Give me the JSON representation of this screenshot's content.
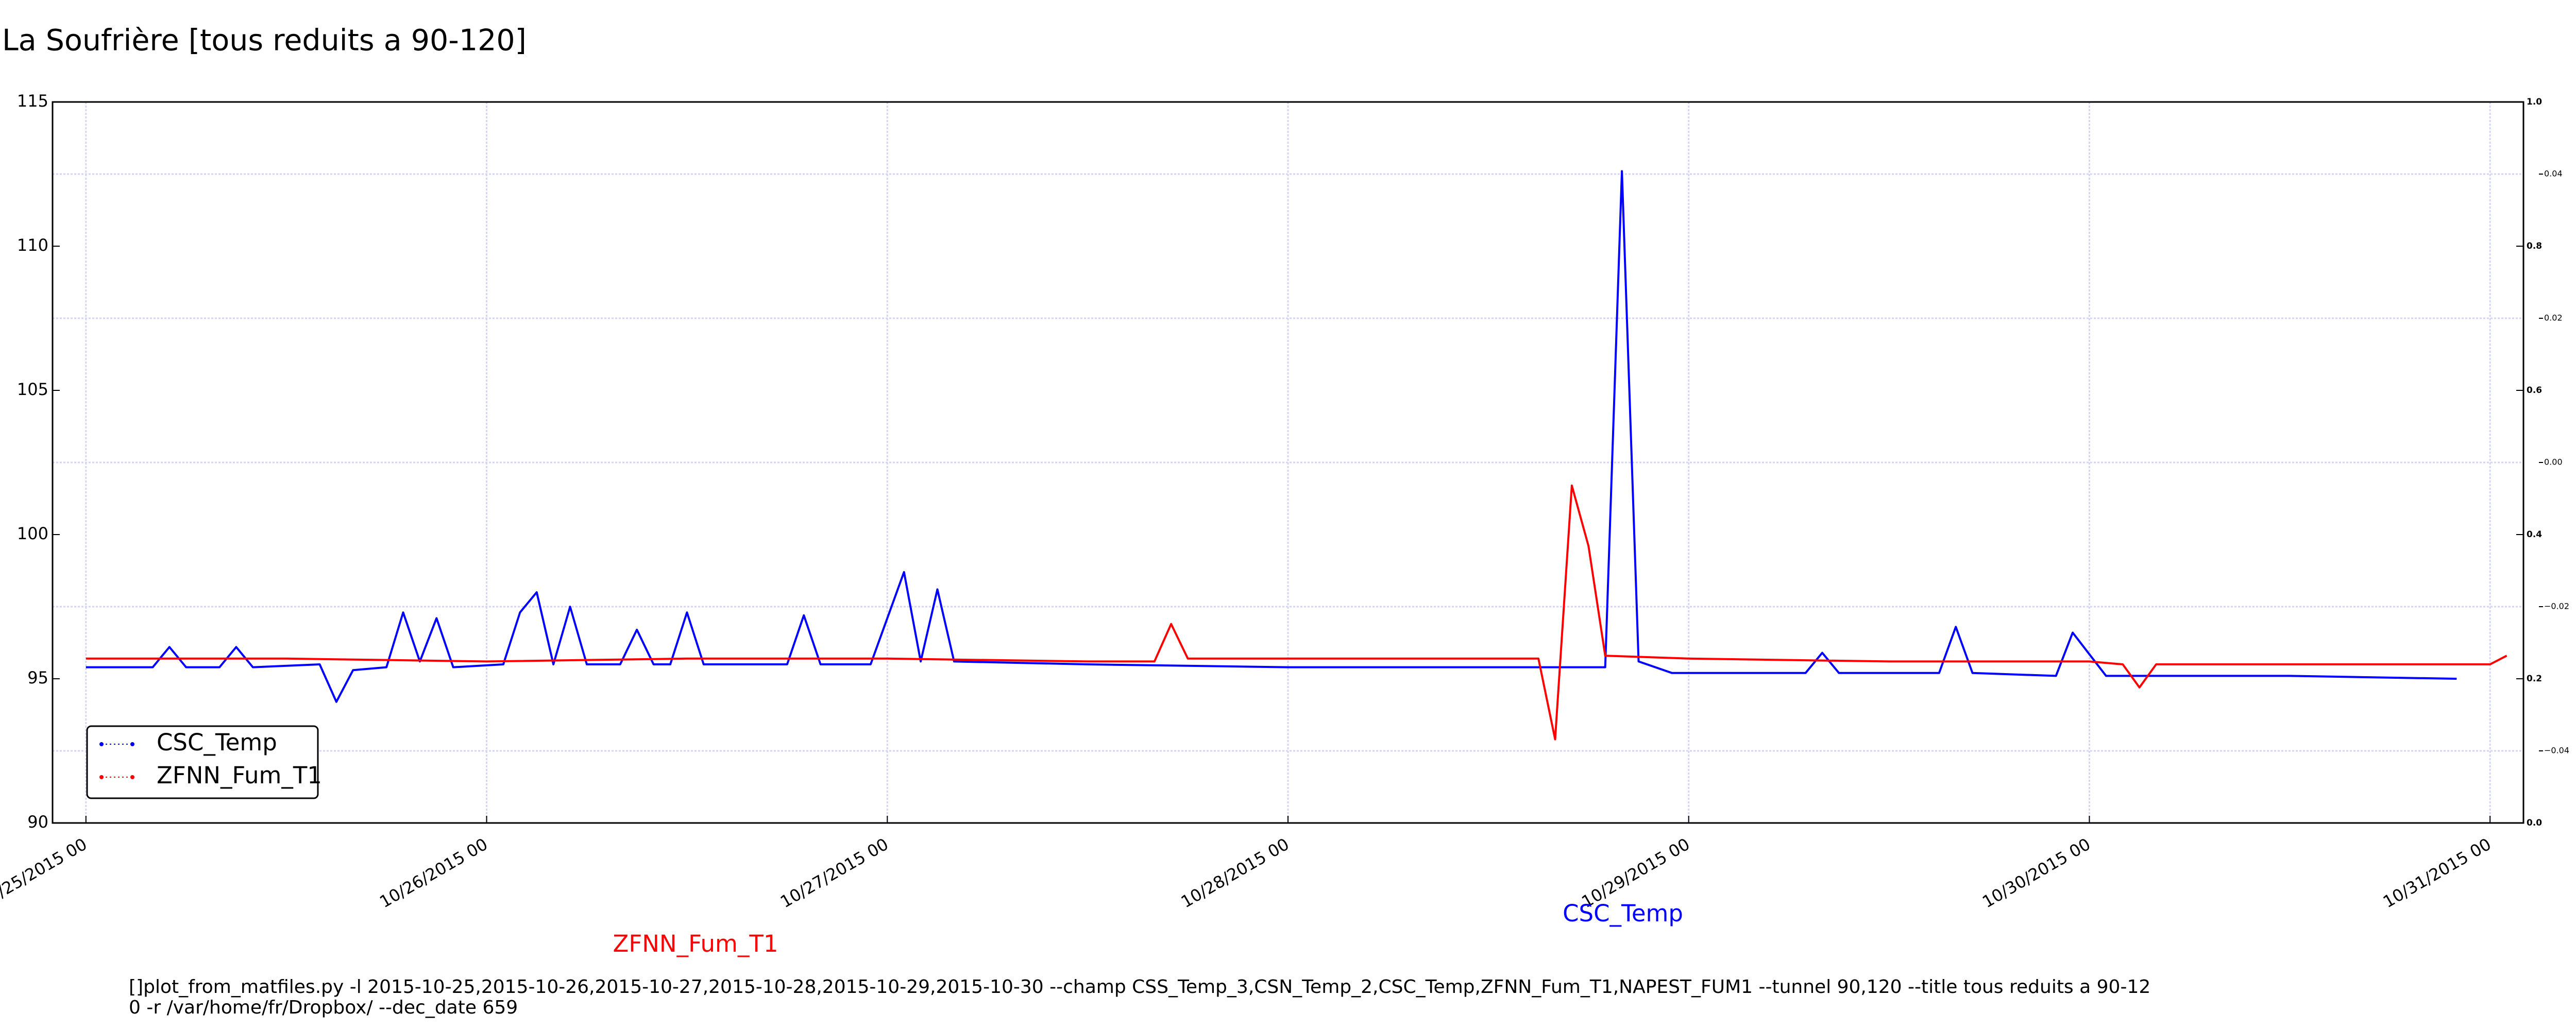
{
  "chart_data": {
    "type": "line",
    "title": "La Soufrière [tous reduits a 90-120]",
    "xlim": [
      "2015-10-24 22",
      "2015-10-31 02"
    ],
    "xticks": [
      {
        "value": "2015-10-25 00",
        "label": "10/25/2015 00"
      },
      {
        "value": "2015-10-26 00",
        "label": "10/26/2015 00"
      },
      {
        "value": "2015-10-27 00",
        "label": "10/27/2015 00"
      },
      {
        "value": "2015-10-28 00",
        "label": "10/28/2015 00"
      },
      {
        "value": "2015-10-29 00",
        "label": "10/29/2015 00"
      },
      {
        "value": "2015-10-30 00",
        "label": "10/30/2015 00"
      },
      {
        "value": "2015-10-31 00",
        "label": "10/31/2015 00"
      }
    ],
    "ylim": [
      90,
      115
    ],
    "yticks": [
      90,
      95,
      100,
      105,
      110,
      115
    ],
    "y2lim": [
      0,
      1
    ],
    "y2ticks": [
      {
        "value": 0,
        "label": "0.0"
      },
      {
        "value": 0.2,
        "label": "0.2"
      },
      {
        "value": 0.4,
        "label": "0.4"
      },
      {
        "value": 0.6,
        "label": "0.6"
      },
      {
        "value": 0.8,
        "label": "0.8"
      },
      {
        "value": 1,
        "label": "1.0"
      }
    ],
    "y3lim": [
      -0.05,
      0.05
    ],
    "y3ticks": [
      {
        "value": -0.04,
        "label": "−0.04"
      },
      {
        "value": -0.02,
        "label": "−0.02"
      },
      {
        "value": 0,
        "label": "0.00"
      },
      0.02,
      0.04
    ],
    "grid": true,
    "legend": "lower left",
    "series": [
      {
        "name": "CSC_Temp",
        "color": "#0000ff",
        "x": [
          "2015-10-25 00",
          "2015-10-25 04",
          "2015-10-25 05",
          "2015-10-25 06",
          "2015-10-25 08",
          "2015-10-25 09",
          "2015-10-25 10",
          "2015-10-25 14",
          "2015-10-25 15",
          "2015-10-25 16",
          "2015-10-25 18",
          "2015-10-25 19",
          "2015-10-25 20",
          "2015-10-25 21",
          "2015-10-25 22",
          "2015-10-26 01",
          "2015-10-26 02",
          "2015-10-26 03",
          "2015-10-26 04",
          "2015-10-26 05",
          "2015-10-26 06",
          "2015-10-26 08",
          "2015-10-26 09",
          "2015-10-26 10",
          "2015-10-26 11",
          "2015-10-26 12",
          "2015-10-26 13",
          "2015-10-26 18",
          "2015-10-26 19",
          "2015-10-26 20",
          "2015-10-26 23",
          "2015-10-27 00",
          "2015-10-27 01",
          "2015-10-27 02",
          "2015-10-27 03",
          "2015-10-27 04",
          "2015-10-27 12",
          "2015-10-28 00",
          "2015-10-28 12",
          "2015-10-28 19",
          "2015-10-28 20",
          "2015-10-28 21",
          "2015-10-28 23",
          "2015-10-29 07",
          "2015-10-29 08",
          "2015-10-29 09",
          "2015-10-29 15",
          "2015-10-29 16",
          "2015-10-29 17",
          "2015-10-29 22",
          "2015-10-29 23",
          "2015-10-30 01",
          "2015-10-30 12",
          "2015-10-30 22"
        ],
        "values": [
          95.4,
          95.4,
          96.1,
          95.4,
          95.4,
          96.1,
          95.4,
          95.5,
          94.2,
          95.3,
          95.4,
          97.3,
          95.6,
          97.1,
          95.4,
          95.5,
          97.3,
          98.0,
          95.5,
          97.5,
          95.5,
          95.5,
          96.7,
          95.5,
          95.5,
          97.3,
          95.5,
          95.5,
          97.2,
          95.5,
          95.5,
          97.1,
          98.7,
          95.6,
          98.1,
          95.6,
          95.5,
          95.4,
          95.4,
          95.4,
          112.6,
          95.6,
          95.2,
          95.2,
          95.9,
          95.2,
          95.2,
          96.8,
          95.2,
          95.1,
          96.6,
          95.1,
          95.1,
          95.0
        ]
      },
      {
        "name": "ZFNN_Fum_T1",
        "color": "#ff0000",
        "x": [
          "2015-10-25 00",
          "2015-10-25 12",
          "2015-10-26 00",
          "2015-10-26 12",
          "2015-10-27 00",
          "2015-10-27 12",
          "2015-10-27 16",
          "2015-10-27 17",
          "2015-10-27 18",
          "2015-10-28 00",
          "2015-10-28 15",
          "2015-10-28 16",
          "2015-10-28 17",
          "2015-10-28 18",
          "2015-10-28 19",
          "2015-10-29 00",
          "2015-10-29 12",
          "2015-10-30 00",
          "2015-10-30 02",
          "2015-10-30 03",
          "2015-10-30 04",
          "2015-10-30 12",
          "2015-10-31 00",
          "2015-10-31 01"
        ],
        "values": [
          95.7,
          95.7,
          95.6,
          95.7,
          95.7,
          95.6,
          95.6,
          96.9,
          95.7,
          95.7,
          95.7,
          92.9,
          101.7,
          99.6,
          95.8,
          95.7,
          95.6,
          95.6,
          95.5,
          94.7,
          95.5,
          95.5,
          95.5,
          95.8
        ]
      }
    ],
    "annotations": [
      {
        "text": "ZFNN_Fum_T1",
        "color": "#ff0000"
      },
      {
        "text": "CSC_Temp",
        "color": "#0000ff"
      }
    ],
    "footer": [
      "[]plot_from_matfiles.py -l 2015-10-25,2015-10-26,2015-10-27,2015-10-28,2015-10-29,2015-10-30 --champ CSS_Temp_3,CSN_Temp_2,CSC_Temp,ZFNN_Fum_T1,NAPEST_FUM1 --tunnel 90,120 --title tous reduits a 90-12",
      "0 -r /var/home/fr/Dropbox/ --dec_date 659"
    ]
  }
}
